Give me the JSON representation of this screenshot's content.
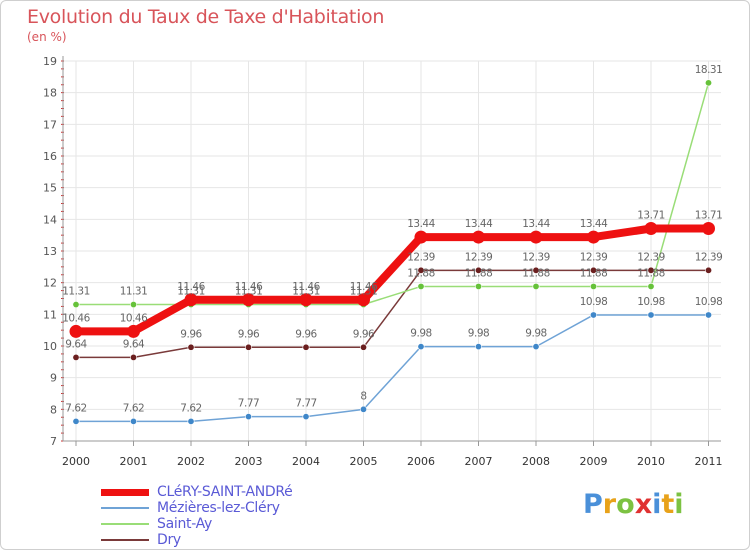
{
  "chart_data": {
    "type": "line",
    "title": "Evolution du Taux de Taxe d'Habitation",
    "subtitle": "(en %)",
    "x": [
      "2000",
      "2001",
      "2002",
      "2003",
      "2004",
      "2005",
      "2006",
      "2007",
      "2008",
      "2009",
      "2010",
      "2011"
    ],
    "ylim": [
      7,
      19
    ],
    "yticks": [
      "7",
      "8",
      "9",
      "10",
      "11",
      "12",
      "13",
      "14",
      "15",
      "16",
      "17",
      "18",
      "19"
    ],
    "series": [
      {
        "name": "Mézières-lez-Cléry",
        "color": "#6fa3d6",
        "markerColor": "#3f87c9",
        "values": [
          7.62,
          7.62,
          7.62,
          7.77,
          7.77,
          8,
          9.98,
          9.98,
          9.98,
          10.98,
          10.98,
          10.98
        ],
        "labels": [
          "7.62",
          "7.62",
          "7.62",
          "7.77",
          "7.77",
          "8",
          "9.98",
          "9.98",
          "9.98",
          "10.98",
          "10.98",
          "10.98"
        ]
      },
      {
        "name": "Dry",
        "color": "#7a3a3a",
        "markerColor": "#6b1f1f",
        "values": [
          9.64,
          9.64,
          9.96,
          9.96,
          9.96,
          9.96,
          12.39,
          12.39,
          12.39,
          12.39,
          12.39,
          12.39
        ],
        "labels": [
          "9.64",
          "9.64",
          "9.96",
          "9.96",
          "9.96",
          "9.96",
          "12.39",
          "12.39",
          "12.39",
          "12.39",
          "12.39",
          "12.39"
        ]
      },
      {
        "name": "Saint-Ay",
        "color": "#99dd77",
        "markerColor": "#66c23a",
        "values": [
          11.31,
          11.31,
          11.31,
          11.31,
          11.31,
          11.31,
          11.88,
          11.88,
          11.88,
          11.88,
          11.88,
          18.31
        ],
        "labels": [
          "11.31",
          "11.31",
          "11.31",
          "11.31",
          "11.31",
          "11.31",
          "11.88",
          "11.88",
          "11.88",
          "11.88",
          "11.88",
          "18.31"
        ]
      },
      {
        "name": "CLéRY-SAINT-ANDRé",
        "color": "#ee1111",
        "markerColor": "#ee1111",
        "values": [
          10.46,
          10.46,
          11.46,
          11.46,
          11.46,
          11.46,
          13.44,
          13.44,
          13.44,
          13.44,
          13.71,
          13.71
        ],
        "labels": [
          "10.46",
          "10.46",
          "11.46",
          "11.46",
          "11.46",
          "11.46",
          "13.44",
          "13.44",
          "13.44",
          "13.44",
          "13.71",
          "13.71"
        ]
      }
    ],
    "legend": [
      {
        "name": "CLéRY-SAINT-ANDRé",
        "color": "#ee1111",
        "width": 7
      },
      {
        "name": "Mézières-lez-Cléry",
        "color": "#6fa3d6",
        "width": 2
      },
      {
        "name": "Saint-Ay",
        "color": "#99dd77",
        "width": 2
      },
      {
        "name": "Dry",
        "color": "#7a3a3a",
        "width": 2
      }
    ]
  },
  "brand": {
    "letters": [
      "P",
      "r",
      "o",
      "x",
      "i",
      "t",
      "i"
    ],
    "colors": [
      "#4a90d9",
      "#e8a21a",
      "#7cc242",
      "#e03131",
      "#4a90d9",
      "#e8a21a",
      "#7cc242"
    ]
  }
}
